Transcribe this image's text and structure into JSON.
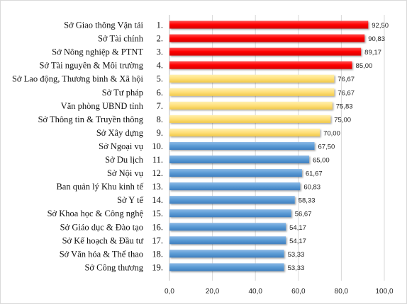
{
  "chart_data": {
    "type": "bar",
    "orientation": "horizontal",
    "title": "",
    "xlabel": "",
    "ylabel": "",
    "xlim": [
      0,
      100
    ],
    "x_ticks": [
      "0,0",
      "20,0",
      "40,0",
      "60,0",
      "80,0",
      "100,0"
    ],
    "x_tick_values": [
      0,
      20,
      40,
      60,
      80,
      100
    ],
    "grid": true,
    "legend": "none",
    "categories": [
      "Sở Giao thông Vận tải",
      "Sở Tài chính",
      "Sở Nông nghiệp & PTNT",
      "Sở Tài nguyên & Môi trường",
      "Sở Lao động, Thương binh & Xã hội",
      "Sở Tư pháp",
      "Văn phòng UBND tỉnh",
      "Sở Thông tin & Truyền thông",
      "Sở Xây dựng",
      "Sở Ngoại vụ",
      "Sở Du lịch",
      "Sở Nội vụ",
      "Ban quản lý Khu kinh tế",
      "Sở Y tế",
      "Sở Khoa học & Công nghệ",
      "Sở Giáo dục & Đào tạo",
      "Sở Kế hoạch & Đầu tư",
      "Sở Văn hóa & Thể thao",
      "Sở Công thương"
    ],
    "ranks": [
      "1.",
      "2.",
      "3.",
      "4.",
      "5.",
      "6.",
      "7.",
      "8.",
      "9.",
      "10.",
      "11.",
      "12.",
      "13.",
      "14.",
      "15.",
      "16.",
      "17.",
      "18.",
      "19."
    ],
    "values": [
      92.5,
      90.83,
      89.17,
      85.0,
      76.67,
      76.67,
      75.83,
      75.0,
      70.0,
      67.5,
      65.0,
      61.67,
      60.83,
      58.33,
      56.67,
      54.17,
      54.17,
      53.33,
      53.33
    ],
    "value_labels": [
      "92,50",
      "90,83",
      "89,17",
      "85,00",
      "76,67",
      "76,67",
      "75,83",
      "75,00",
      "70,00",
      "67,50",
      "65,00",
      "61,67",
      "60,83",
      "58,33",
      "56,67",
      "54,17",
      "54,17",
      "53,33",
      "53,33"
    ],
    "colors": {
      "top_group": "#ff0000",
      "middle_group": "#ffe07a",
      "bottom_group": "#5b9bd5"
    },
    "group_of_bar": [
      "top",
      "top",
      "top",
      "top",
      "middle",
      "middle",
      "middle",
      "middle",
      "middle",
      "bottom",
      "bottom",
      "bottom",
      "bottom",
      "bottom",
      "bottom",
      "bottom",
      "bottom",
      "bottom",
      "bottom"
    ]
  }
}
